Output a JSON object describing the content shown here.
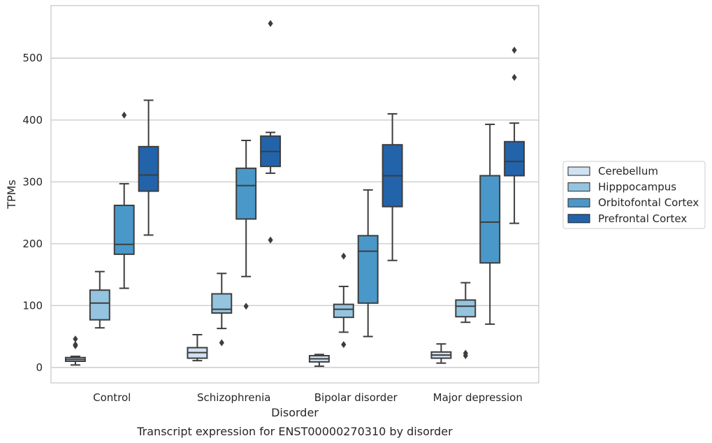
{
  "chart_data": {
    "type": "box",
    "caption": "Transcript expression for ENST00000270310 by disorder",
    "xlabel": "Disorder",
    "ylabel": "TPMs",
    "ylim": [
      -25,
      585
    ],
    "yticks": [
      0,
      100,
      200,
      300,
      400,
      500
    ],
    "grid": "horizontal",
    "legend_position": "right",
    "categories": [
      "Control",
      "Schizophrenia",
      "Bipolar disorder",
      "Major depression"
    ],
    "series": [
      {
        "name": "Cerebellum",
        "color": "#d0e1f2",
        "boxes": [
          {
            "whislo": 4,
            "q1": 10,
            "med": 13,
            "q3": 16,
            "whishi": 18,
            "fliers": [
              35,
              37,
              46
            ]
          },
          {
            "whislo": 11,
            "q1": 15,
            "med": 24,
            "q3": 32,
            "whishi": 53,
            "fliers": []
          },
          {
            "whislo": 2,
            "q1": 9,
            "med": 14,
            "q3": 19,
            "whishi": 21,
            "fliers": []
          },
          {
            "whislo": 7,
            "q1": 15,
            "med": 20,
            "q3": 25,
            "whishi": 38,
            "fliers": []
          }
        ]
      },
      {
        "name": "Hipppocampus",
        "color": "#94c4df",
        "boxes": [
          {
            "whislo": 64,
            "q1": 77,
            "med": 104,
            "q3": 125,
            "whishi": 155,
            "fliers": []
          },
          {
            "whislo": 63,
            "q1": 88,
            "med": 94,
            "q3": 119,
            "whishi": 152,
            "fliers": [
              40
            ]
          },
          {
            "whislo": 57,
            "q1": 81,
            "med": 94,
            "q3": 102,
            "whishi": 131,
            "fliers": [
              37,
              180
            ]
          },
          {
            "whislo": 73,
            "q1": 82,
            "med": 99,
            "q3": 109,
            "whishi": 137,
            "fliers": [
              19,
              23
            ]
          }
        ]
      },
      {
        "name": "Orbitofontal Cortex",
        "color": "#4a98c9",
        "boxes": [
          {
            "whislo": 128,
            "q1": 183,
            "med": 199,
            "q3": 262,
            "whishi": 297,
            "fliers": [
              408
            ]
          },
          {
            "whislo": 147,
            "q1": 240,
            "med": 294,
            "q3": 322,
            "whishi": 367,
            "fliers": [
              99
            ]
          },
          {
            "whislo": 50,
            "q1": 104,
            "med": 188,
            "q3": 213,
            "whishi": 287,
            "fliers": []
          },
          {
            "whislo": 70,
            "q1": 169,
            "med": 235,
            "q3": 310,
            "whishi": 393,
            "fliers": []
          }
        ]
      },
      {
        "name": "Prefrontal Cortex",
        "color": "#2363aa",
        "boxes": [
          {
            "whislo": 214,
            "q1": 285,
            "med": 311,
            "q3": 357,
            "whishi": 432,
            "fliers": []
          },
          {
            "whislo": 314,
            "q1": 325,
            "med": 349,
            "q3": 374,
            "whishi": 380,
            "fliers": [
              206,
              556
            ]
          },
          {
            "whislo": 173,
            "q1": 260,
            "med": 310,
            "q3": 360,
            "whishi": 410,
            "fliers": []
          },
          {
            "whislo": 233,
            "q1": 310,
            "med": 333,
            "q3": 365,
            "whishi": 395,
            "fliers": [
              469,
              513
            ]
          }
        ]
      }
    ]
  }
}
